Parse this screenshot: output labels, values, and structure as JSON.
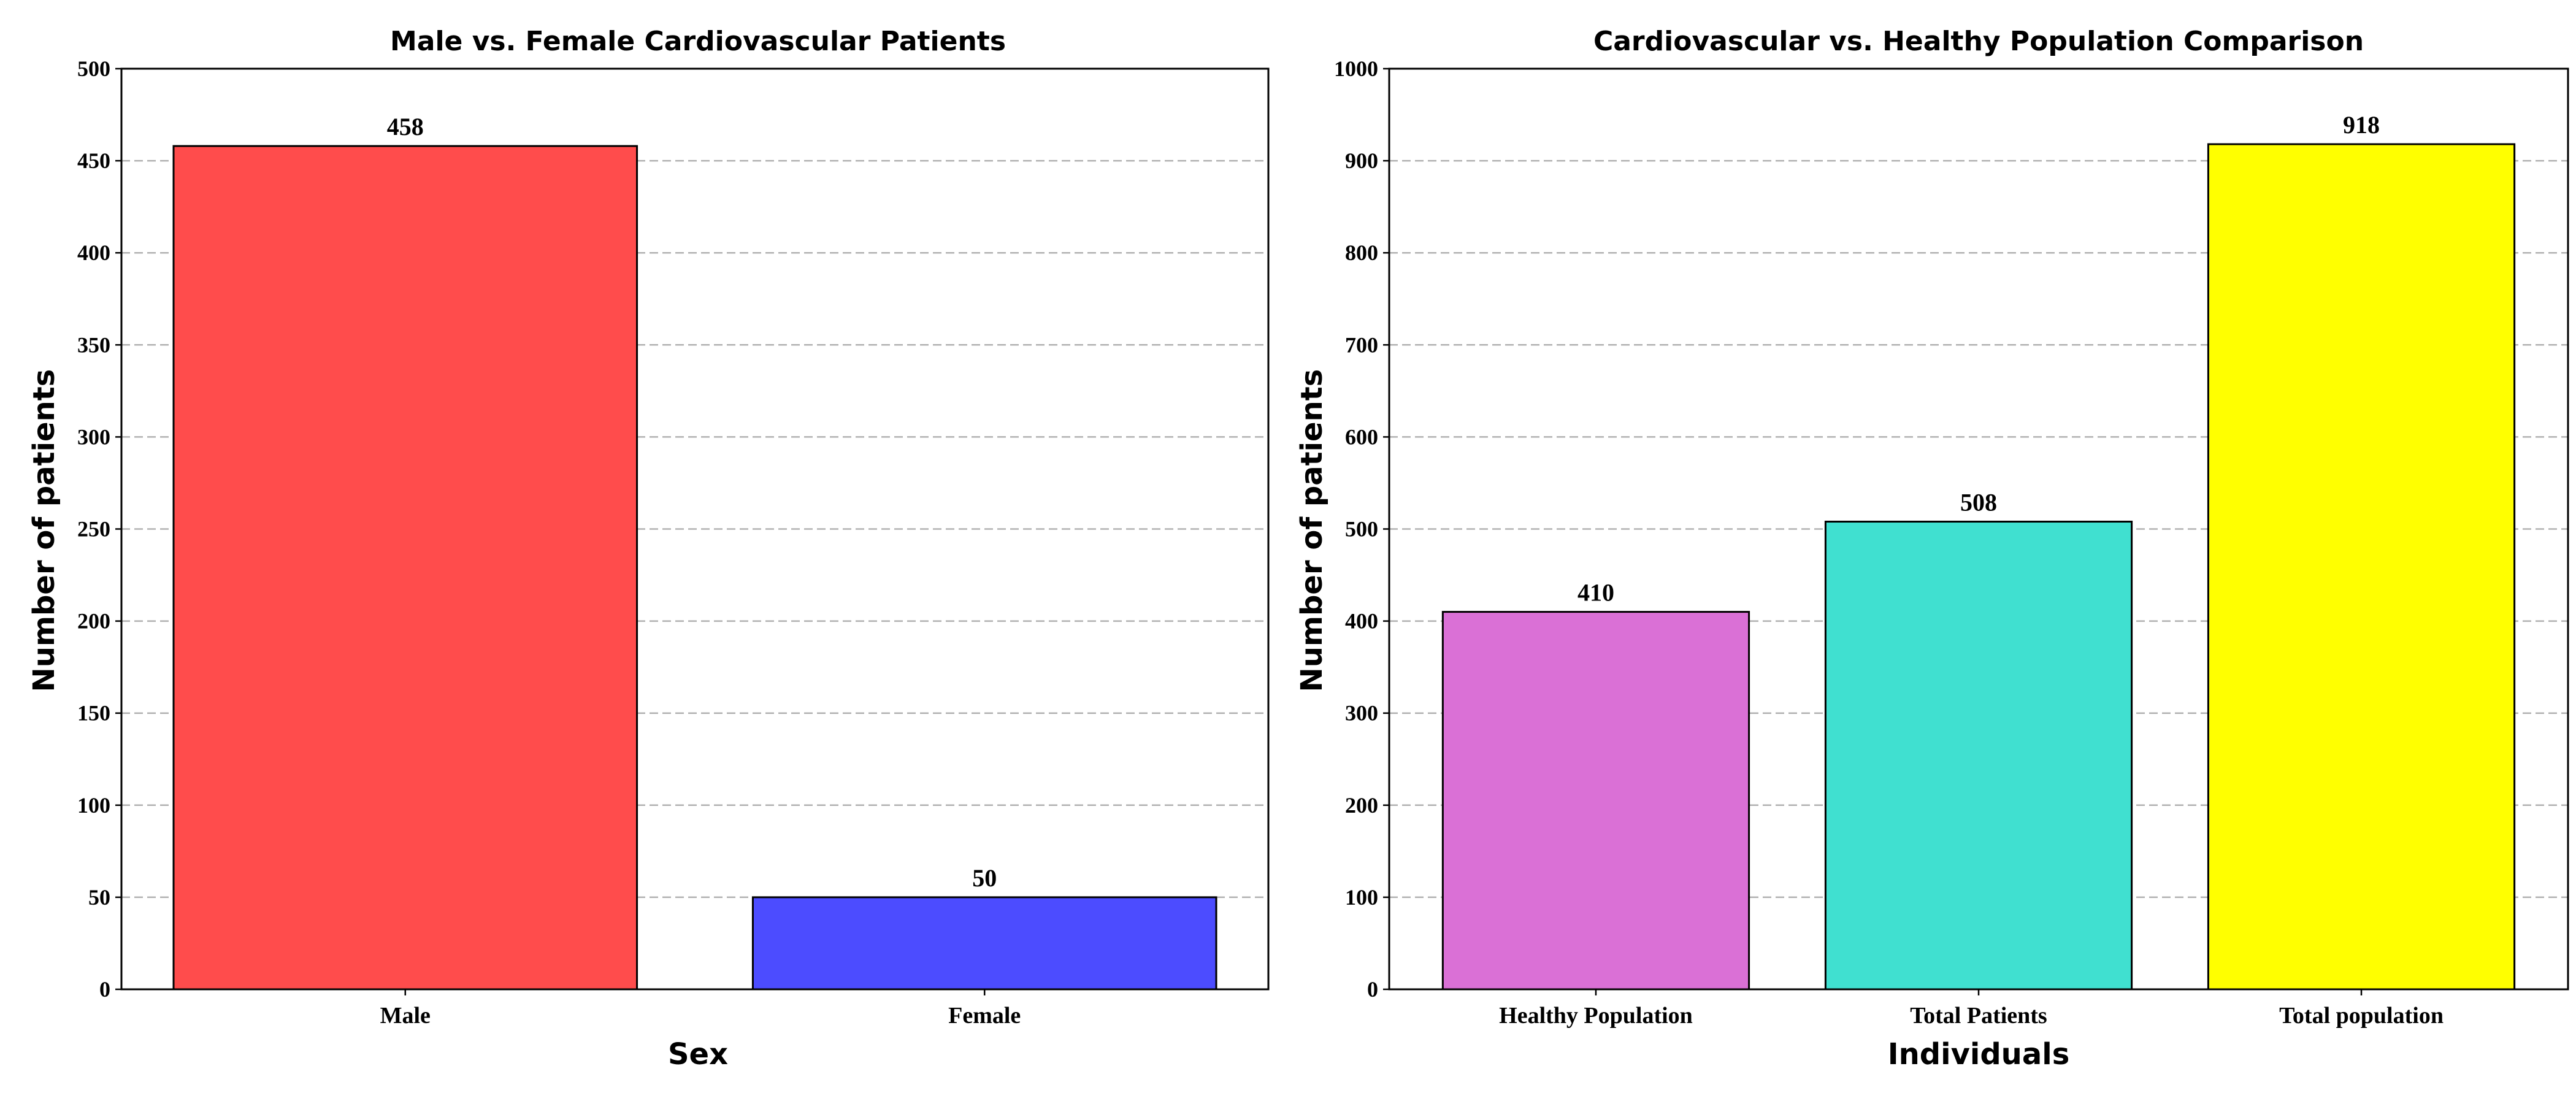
{
  "chart_data": [
    {
      "type": "bar",
      "title": "Male vs. Female Cardiovascular Patients",
      "xlabel": "Sex",
      "ylabel": "Number of patients",
      "categories": [
        "Male",
        "Female"
      ],
      "values": [
        458,
        50
      ],
      "value_labels": [
        "458",
        "50"
      ],
      "colors": [
        "#ff4c4c",
        "#4c4cff"
      ],
      "ylim": [
        0,
        500
      ],
      "yticks": [
        0,
        50,
        100,
        150,
        200,
        250,
        300,
        350,
        400,
        450,
        500
      ],
      "grid": "y-dashed"
    },
    {
      "type": "bar",
      "title": "Cardiovascular vs. Healthy Population Comparison",
      "xlabel": "Individuals",
      "ylabel": "Number of patients",
      "categories": [
        "Healthy Population",
        "Total Patients",
        "Total population"
      ],
      "values": [
        410,
        508,
        918
      ],
      "value_labels": [
        "410",
        "508",
        "918"
      ],
      "colors": [
        "#da70d6",
        "#40e0d0",
        "#ffff00"
      ],
      "ylim": [
        0,
        1000
      ],
      "yticks": [
        0,
        100,
        200,
        300,
        400,
        500,
        600,
        700,
        800,
        900,
        1000
      ],
      "grid": "y-dashed"
    }
  ]
}
